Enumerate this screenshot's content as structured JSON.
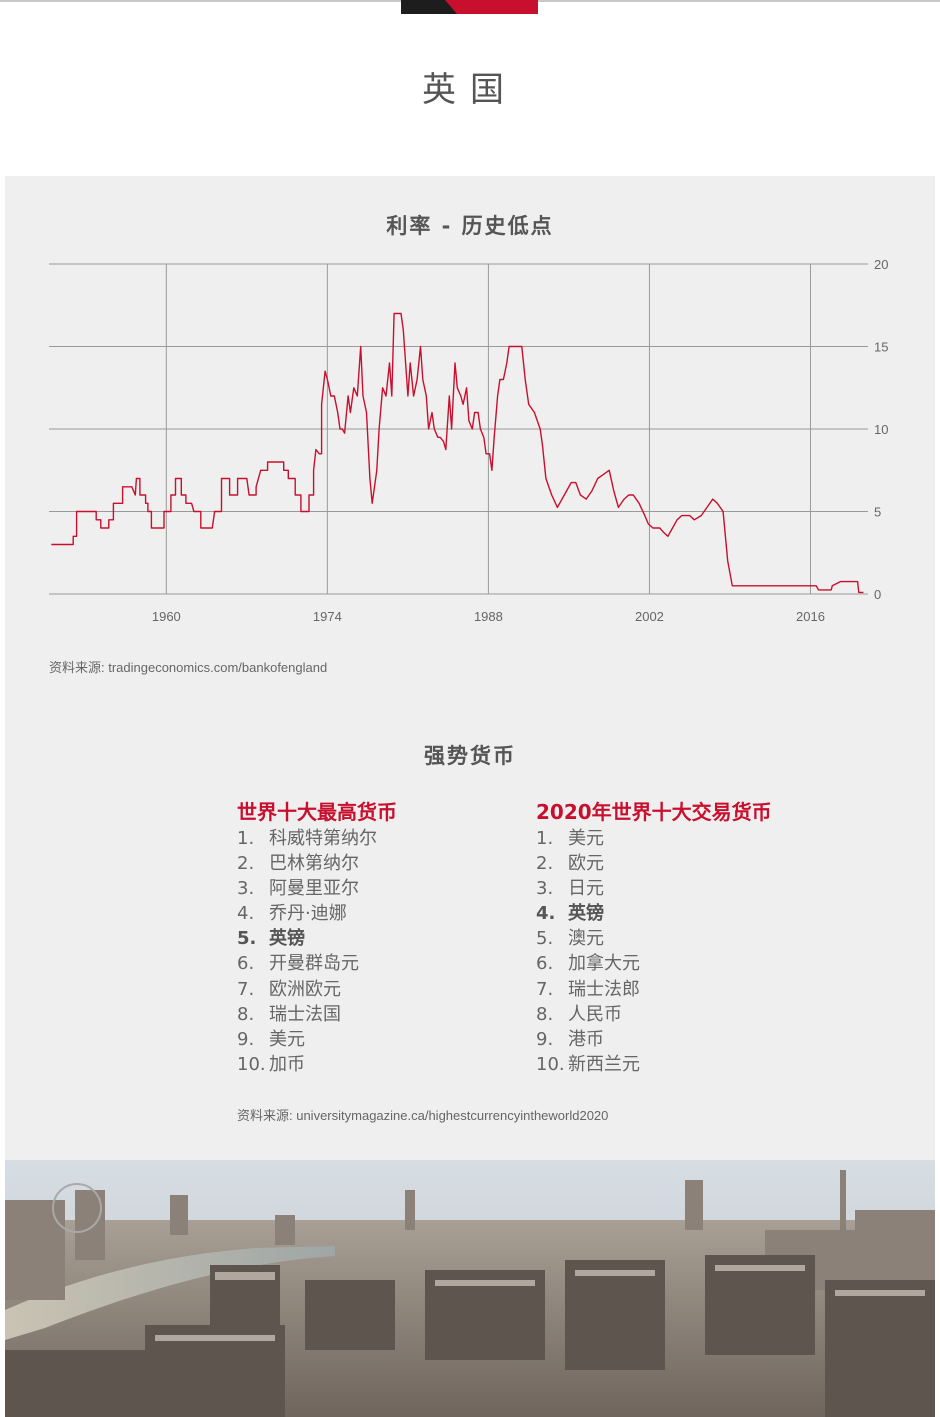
{
  "page": {
    "title": "英国",
    "colors": {
      "accent": "#c8102e",
      "panel": "#efefef",
      "text": "#555555"
    }
  },
  "chart_data": {
    "type": "line",
    "title": "利率 - 历史低点",
    "xlabel": "",
    "ylabel": "",
    "x_ticks": [
      "1960",
      "1974",
      "1988",
      "2002",
      "2016"
    ],
    "y_ticks": [
      "20",
      "15",
      "10",
      "5",
      "0"
    ],
    "xlim": [
      1949.8,
      2021.0
    ],
    "ylim": [
      0,
      20
    ],
    "grid": true,
    "y_axis_side": "right",
    "series": [
      {
        "color": "#c8102e",
        "points": [
          [
            1950,
            3
          ],
          [
            1951.9,
            3
          ],
          [
            1951.9,
            3.5
          ],
          [
            1952.2,
            3.5
          ],
          [
            1952.2,
            5
          ],
          [
            1953.5,
            5
          ],
          [
            1953.9,
            5
          ],
          [
            1953.9,
            4.5
          ],
          [
            1954.3,
            4.5
          ],
          [
            1954.3,
            4
          ],
          [
            1955,
            4
          ],
          [
            1955,
            4.5
          ],
          [
            1955.4,
            4.5
          ],
          [
            1955.4,
            5.5
          ],
          [
            1956.2,
            5.5
          ],
          [
            1956.2,
            6.5
          ],
          [
            1957,
            6.5
          ],
          [
            1957.3,
            6
          ],
          [
            1957.4,
            7
          ],
          [
            1957.7,
            7
          ],
          [
            1957.7,
            6
          ],
          [
            1958.2,
            6
          ],
          [
            1958.2,
            5.5
          ],
          [
            1958.4,
            5.5
          ],
          [
            1958.4,
            5
          ],
          [
            1958.7,
            5
          ],
          [
            1958.7,
            4
          ],
          [
            1959.8,
            4
          ],
          [
            1959.8,
            5
          ],
          [
            1960.4,
            5
          ],
          [
            1960.4,
            6
          ],
          [
            1960.8,
            6
          ],
          [
            1960.8,
            7
          ],
          [
            1961.3,
            7
          ],
          [
            1961.3,
            6
          ],
          [
            1961.7,
            6
          ],
          [
            1961.7,
            5.5
          ],
          [
            1962.2,
            5.5
          ],
          [
            1962.4,
            5
          ],
          [
            1963,
            5
          ],
          [
            1963,
            4
          ],
          [
            1964,
            4
          ],
          [
            1964.2,
            5
          ],
          [
            1964.8,
            5
          ],
          [
            1964.8,
            7
          ],
          [
            1965.5,
            7
          ],
          [
            1965.5,
            6
          ],
          [
            1966.2,
            6
          ],
          [
            1966.2,
            7
          ],
          [
            1967,
            7
          ],
          [
            1967.2,
            6
          ],
          [
            1967.8,
            6
          ],
          [
            1967.8,
            6.5
          ],
          [
            1968.2,
            7.5
          ],
          [
            1968.8,
            7.5
          ],
          [
            1968.8,
            8
          ],
          [
            1969.2,
            8
          ],
          [
            1969.2,
            8
          ],
          [
            1970.2,
            8
          ],
          [
            1970.2,
            7.5
          ],
          [
            1970.6,
            7.5
          ],
          [
            1970.6,
            7
          ],
          [
            1971.2,
            7
          ],
          [
            1971.2,
            6
          ],
          [
            1971.7,
            6
          ],
          [
            1971.7,
            5
          ],
          [
            1972.4,
            5
          ],
          [
            1972.4,
            6
          ],
          [
            1972.8,
            6
          ],
          [
            1972.8,
            7.5
          ],
          [
            1973,
            8.75
          ],
          [
            1973.3,
            8.5
          ],
          [
            1973.5,
            8.5
          ],
          [
            1973.5,
            11.5
          ],
          [
            1973.8,
            13.5
          ],
          [
            1974,
            13
          ],
          [
            1974.3,
            12
          ],
          [
            1974.6,
            12
          ],
          [
            1974.9,
            11
          ],
          [
            1975.1,
            10
          ],
          [
            1975.3,
            10
          ],
          [
            1975.5,
            9.75
          ],
          [
            1975.8,
            12
          ],
          [
            1976,
            11
          ],
          [
            1976.3,
            12.5
          ],
          [
            1976.6,
            12
          ],
          [
            1976.9,
            15
          ],
          [
            1977.1,
            12
          ],
          [
            1977.4,
            11
          ],
          [
            1977.7,
            7
          ],
          [
            1977.9,
            5.5
          ],
          [
            1978.1,
            6.5
          ],
          [
            1978.3,
            7.5
          ],
          [
            1978.5,
            10
          ],
          [
            1978.8,
            12.5
          ],
          [
            1979.1,
            12
          ],
          [
            1979.4,
            14
          ],
          [
            1979.6,
            12
          ],
          [
            1979.8,
            17
          ],
          [
            1980.4,
            17
          ],
          [
            1980.6,
            16
          ],
          [
            1980.8,
            14
          ],
          [
            1981,
            12
          ],
          [
            1981.2,
            14
          ],
          [
            1981.5,
            12
          ],
          [
            1981.8,
            13
          ],
          [
            1982.1,
            15
          ],
          [
            1982.3,
            13
          ],
          [
            1982.6,
            12
          ],
          [
            1982.8,
            10
          ],
          [
            1983.1,
            11
          ],
          [
            1983.3,
            10
          ],
          [
            1983.6,
            9.5
          ],
          [
            1983.8,
            9.5
          ],
          [
            1984.1,
            9.25
          ],
          [
            1984.3,
            8.75
          ],
          [
            1984.6,
            12
          ],
          [
            1984.8,
            10
          ],
          [
            1985.1,
            14
          ],
          [
            1985.3,
            12.5
          ],
          [
            1985.6,
            12
          ],
          [
            1985.8,
            11.5
          ],
          [
            1986.1,
            12.5
          ],
          [
            1986.3,
            10.5
          ],
          [
            1986.6,
            10
          ],
          [
            1986.8,
            11
          ],
          [
            1987.1,
            11
          ],
          [
            1987.3,
            10
          ],
          [
            1987.6,
            9.5
          ],
          [
            1987.8,
            8.5
          ],
          [
            1988.1,
            8.5
          ],
          [
            1988.3,
            7.5
          ],
          [
            1988.5,
            9.5
          ],
          [
            1988.8,
            12
          ],
          [
            1989,
            13
          ],
          [
            1989.3,
            13
          ],
          [
            1989.6,
            14
          ],
          [
            1989.8,
            15
          ],
          [
            1990.2,
            15
          ],
          [
            1990.9,
            15
          ],
          [
            1991.2,
            13
          ],
          [
            1991.5,
            11.5
          ],
          [
            1992,
            11
          ],
          [
            1992.5,
            10
          ],
          [
            1992.7,
            9
          ],
          [
            1993,
            7
          ],
          [
            1993.5,
            6
          ],
          [
            1994,
            5.25
          ],
          [
            1994.4,
            5.75
          ],
          [
            1994.8,
            6.25
          ],
          [
            1995.2,
            6.75
          ],
          [
            1995.6,
            6.75
          ],
          [
            1996,
            6
          ],
          [
            1996.5,
            5.75
          ],
          [
            1997,
            6.25
          ],
          [
            1997.5,
            7
          ],
          [
            1998,
            7.25
          ],
          [
            1998.5,
            7.5
          ],
          [
            1998.9,
            6.25
          ],
          [
            1999.3,
            5.25
          ],
          [
            1999.8,
            5.75
          ],
          [
            2000.2,
            6
          ],
          [
            2000.6,
            6
          ],
          [
            2001.1,
            5.5
          ],
          [
            2001.6,
            4.75
          ],
          [
            2001.9,
            4.25
          ],
          [
            2002.3,
            4
          ],
          [
            2002.9,
            4
          ],
          [
            2003.2,
            3.75
          ],
          [
            2003.6,
            3.5
          ],
          [
            2004,
            4
          ],
          [
            2004.4,
            4.5
          ],
          [
            2004.8,
            4.75
          ],
          [
            2005.5,
            4.75
          ],
          [
            2005.9,
            4.5
          ],
          [
            2006.5,
            4.75
          ],
          [
            2007,
            5.25
          ],
          [
            2007.5,
            5.75
          ],
          [
            2007.9,
            5.5
          ],
          [
            2008.4,
            5
          ],
          [
            2008.8,
            2
          ],
          [
            2009.2,
            0.5
          ],
          [
            2011,
            0.5
          ],
          [
            2016.5,
            0.5
          ],
          [
            2016.7,
            0.25
          ],
          [
            2017.8,
            0.25
          ],
          [
            2017.9,
            0.5
          ],
          [
            2018.6,
            0.75
          ],
          [
            2020.1,
            0.75
          ],
          [
            2020.2,
            0.1
          ],
          [
            2020.6,
            0.1
          ]
        ]
      }
    ]
  },
  "chart_source": "资料来源: tradingeconomics.com/bankofengland",
  "currencies": {
    "title": "强势货币",
    "left": {
      "heading": "世界十大最高货币",
      "items": [
        {
          "num": "1.",
          "name": "科威特第纳尔"
        },
        {
          "num": "2.",
          "name": "巴林第纳尔"
        },
        {
          "num": "3.",
          "name": "阿曼里亚尔"
        },
        {
          "num": "4.",
          "name": "乔丹·迪娜"
        },
        {
          "num": "5.",
          "name": "英镑"
        },
        {
          "num": "6.",
          "name": "开曼群岛元"
        },
        {
          "num": "7.",
          "name": "欧洲欧元"
        },
        {
          "num": "8.",
          "name": "瑞士法国"
        },
        {
          "num": "9.",
          "name": "美元"
        },
        {
          "num": "10.",
          "name": "加币"
        }
      ]
    },
    "right": {
      "heading": "2020年世界十大交易货币",
      "items": [
        {
          "num": "1.",
          "name": "美元"
        },
        {
          "num": "2.",
          "name": "欧元"
        },
        {
          "num": "3.",
          "name": "日元"
        },
        {
          "num": "4.",
          "name": "英镑"
        },
        {
          "num": "5.",
          "name": "澳元"
        },
        {
          "num": "6.",
          "name": "加拿大元"
        },
        {
          "num": "7.",
          "name": "瑞士法郎"
        },
        {
          "num": "8.",
          "name": "人民币"
        },
        {
          "num": "9.",
          "name": "港币"
        },
        {
          "num": "10.",
          "name": "新西兰元"
        }
      ]
    },
    "source": "资料来源: universitymagazine.ca/highestcurrencyintheworld2020"
  },
  "photo": {
    "description_icon": "london-skyline-photo"
  }
}
